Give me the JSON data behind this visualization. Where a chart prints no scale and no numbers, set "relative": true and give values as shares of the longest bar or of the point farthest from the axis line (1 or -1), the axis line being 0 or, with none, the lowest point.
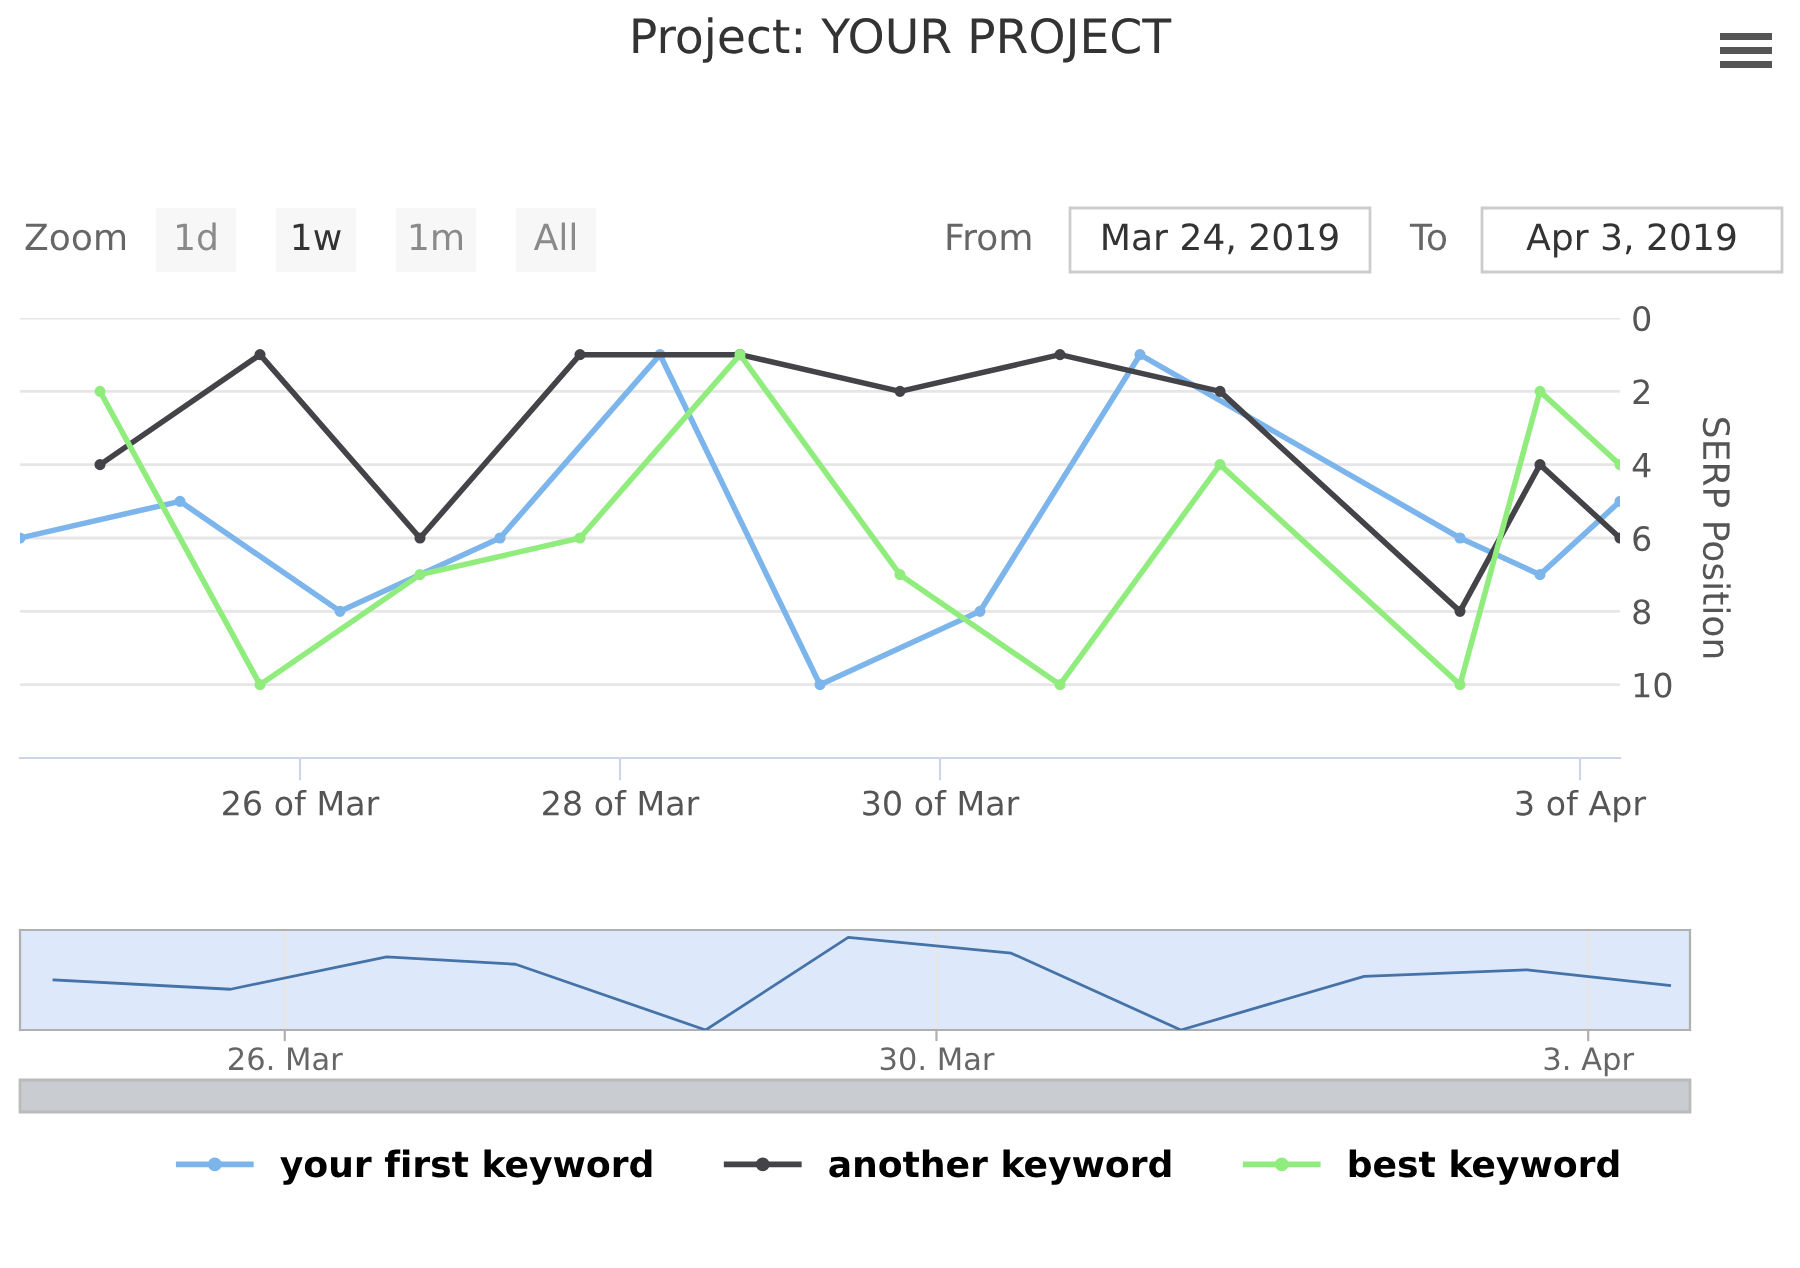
{
  "chart_data": [
    {
      "type": "line",
      "title": "Project: YOUR PROJECT",
      "ylabel": "SERP Position",
      "annotations": [
        "Zoom",
        "1d",
        "1w",
        "1m",
        "All",
        "From",
        "Mar 24, 2019",
        "To",
        "Apr 3, 2019"
      ],
      "series": [
        {
          "name": "your first keyword",
          "color": "#7cb5ec",
          "x": [
            "2019-03-24T06:00",
            "2019-03-25T06:00",
            "2019-03-26T06:00",
            "2019-03-27T06:00",
            "2019-03-28T06:00",
            "2019-03-29T06:00",
            "2019-03-30T06:00",
            "2019-03-31T06:00",
            "2019-04-02T06:00",
            "2019-04-02T18:00",
            "2019-04-03T06:00"
          ],
          "values": [
            6,
            5,
            8,
            6,
            1,
            10,
            8,
            1,
            6,
            7,
            5
          ]
        },
        {
          "name": "another keyword",
          "color": "#434348",
          "x": [
            "2019-03-24T18:00",
            "2019-03-25T18:00",
            "2019-03-26T18:00",
            "2019-03-27T18:00",
            "2019-03-28T18:00",
            "2019-03-29T18:00",
            "2019-03-30T18:00",
            "2019-03-31T18:00",
            "2019-04-02T06:00",
            "2019-04-02T18:00",
            "2019-04-03T06:00"
          ],
          "values": [
            4,
            1,
            6,
            1,
            1,
            2,
            1,
            2,
            8,
            4,
            6
          ]
        },
        {
          "name": "best keyword",
          "color": "#90ed7d",
          "x": [
            "2019-03-24T18:00",
            "2019-03-25T18:00",
            "2019-03-26T18:00",
            "2019-03-27T18:00",
            "2019-03-28T18:00",
            "2019-03-29T18:00",
            "2019-03-30T18:00",
            "2019-03-31T18:00",
            "2019-04-02T06:00",
            "2019-04-02T18:00",
            "2019-04-03T06:00"
          ],
          "values": [
            2,
            10,
            7,
            6,
            1,
            7,
            10,
            4,
            10,
            2,
            4
          ]
        }
      ],
      "xlim": [
        "2019-03-24T06:00",
        "2019-04-03T06:00"
      ],
      "xticks": [
        {
          "value": "2019-03-26",
          "label": "26 of Mar"
        },
        {
          "value": "2019-03-28",
          "label": "28 of Mar"
        },
        {
          "value": "2019-03-30",
          "label": "30 of Mar"
        },
        {
          "value": "2019-04-03",
          "label": "3 of Apr"
        }
      ],
      "ylim": [
        12,
        0
      ],
      "yticks": [
        0,
        2,
        4,
        6,
        8,
        10
      ],
      "grid": "y",
      "legend": "bottom",
      "marker": "circle",
      "line_style": "solid"
    },
    {
      "type": "line",
      "relative": true,
      "x": [
        "2019-03-24T14:00",
        "2019-03-25T16:00",
        "2019-03-26T15:00",
        "2019-03-27T10:00",
        "2019-03-28T14:00",
        "2019-03-29T11:00",
        "2019-03-30T11:00",
        "2019-03-31T12:00",
        "2019-04-01T15:00",
        "2019-04-02T15:00",
        "2019-04-03T12:00"
      ],
      "series": [
        {
          "color": "#4572a7",
          "values": [
            0.54,
            0.44,
            0.79,
            0.71,
            0,
            1,
            0.83,
            0,
            0.58,
            0.65,
            0.48
          ]
        }
      ],
      "xlim": [
        "2019-03-24T09:00",
        "2019-04-03T15:00"
      ],
      "xticks": [
        {
          "value": "2019-03-26",
          "label": "26. Mar"
        },
        {
          "value": "2019-03-30",
          "label": "30. Mar"
        },
        {
          "value": "2019-04-03",
          "label": "3. Apr"
        }
      ],
      "grid": "x",
      "tick_labels": "x"
    }
  ]
}
